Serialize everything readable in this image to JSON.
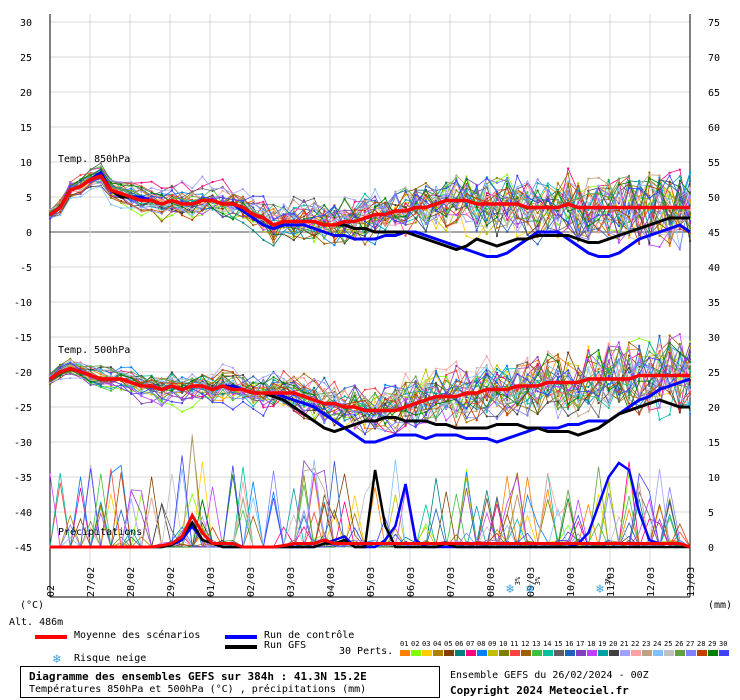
{
  "chart_data": {
    "type": "line",
    "title": "Diagramme des ensembles GEFS sur 384h : 41.3N 15.2E",
    "subtitle": "Températures 850hPa et 500hPa (°C) , précipitations (mm)",
    "x_dates": [
      "27/02",
      "28/02",
      "29/02",
      "01/03",
      "02/03",
      "03/03",
      "04/03",
      "05/03",
      "06/03",
      "07/03",
      "08/03",
      "09/03",
      "10/03",
      "11/03",
      "12/03",
      "13/03"
    ],
    "x_first_label": "02",
    "x_start_date": "26/02",
    "left_axis": {
      "label": "(°C)",
      "ticks": [
        30,
        25,
        20,
        15,
        10,
        5,
        0,
        -5,
        -10,
        -15,
        -20,
        -25,
        -30,
        -35,
        -40,
        -45
      ],
      "range": [
        -45,
        30
      ]
    },
    "right_axis": {
      "label": "(mm)",
      "ticks": [
        75,
        70,
        65,
        60,
        55,
        50,
        45,
        40,
        35,
        30,
        25,
        20,
        15,
        10,
        5,
        0
      ],
      "range": [
        0,
        75
      ]
    },
    "panel_labels": {
      "t850": "Temp. 850hPa",
      "t500": "Temp. 500hPa",
      "precip": "Précipitations"
    },
    "altitude": "Alt. 486m",
    "snow_risk_labels": [
      "3%",
      "3%",
      "3%"
    ],
    "series": [
      {
        "name": "Moyenne des scénarios",
        "color": "#ff0000",
        "t850": [
          2.5,
          3.5,
          6,
          6.5,
          7.5,
          8,
          6,
          5.5,
          5,
          4.5,
          4.5,
          4,
          4.5,
          4,
          4,
          4.5,
          4.5,
          4,
          4,
          3.5,
          2.5,
          2,
          1,
          1.5,
          1.5,
          1.5,
          1.5,
          1,
          1,
          1.5,
          1.5,
          2,
          2.5,
          2.5,
          3,
          3,
          3.5,
          3.5,
          4,
          4.5,
          4.5,
          4.5,
          4,
          4,
          4,
          4,
          4,
          3.5,
          3.5,
          3.5,
          3.5,
          4,
          3.5,
          3.5,
          3.5,
          3.5,
          3.5,
          3.5,
          3.5,
          3.5,
          3.5,
          3.5,
          3.5,
          3.5
        ],
        "t500": [
          -21,
          -20,
          -19.5,
          -20,
          -20.5,
          -21,
          -21,
          -21,
          -21.5,
          -22,
          -22,
          -22.5,
          -22,
          -22.5,
          -22,
          -22,
          -22.5,
          -22,
          -22.5,
          -22.5,
          -23,
          -23,
          -23,
          -23,
          -23,
          -23.5,
          -24,
          -24.5,
          -24.5,
          -25,
          -25,
          -25.5,
          -25.5,
          -25.5,
          -25.5,
          -25,
          -24.5,
          -24,
          -23.5,
          -23.5,
          -23.5,
          -23,
          -23,
          -22.5,
          -22.5,
          -22.5,
          -22,
          -22,
          -22,
          -21.5,
          -21.5,
          -21.5,
          -21.5,
          -21,
          -21,
          -21,
          -21,
          -21,
          -20.5,
          -20.5,
          -20.5,
          -20.5,
          -20.5,
          -20.5
        ],
        "precip": [
          0,
          0,
          0,
          0,
          0,
          0,
          0,
          0,
          0,
          0,
          0,
          0.2,
          0.5,
          1.5,
          4.5,
          2,
          0.5,
          0.5,
          0.5,
          0,
          0,
          0,
          0,
          0.2,
          0.5,
          0.5,
          0.5,
          1,
          0.5,
          0.5,
          0.5,
          0.5,
          0.5,
          0.5,
          0.5,
          0.5,
          0.5,
          0.5,
          0.5,
          0.5,
          0.5,
          0.5,
          0.5,
          0.5,
          0.5,
          0.5,
          0.5,
          0.5,
          0.5,
          0.5,
          0.5,
          0.5,
          0.5,
          0.5,
          0.5,
          0.5,
          0.5,
          0.5,
          0.5,
          0.5,
          0.5,
          0.5,
          0.5,
          0
        ]
      },
      {
        "name": "Run de contrôle",
        "color": "#0000ff",
        "t850": [
          2.5,
          3.5,
          6,
          6.5,
          7.5,
          8.5,
          6,
          5,
          5,
          5,
          4.5,
          4,
          4.5,
          4,
          4,
          4.5,
          4.5,
          4,
          4,
          3,
          2,
          1,
          0.5,
          1,
          1,
          1,
          0.5,
          0,
          -0.5,
          -0.5,
          -1,
          -1,
          -1,
          -0.5,
          -0.5,
          0,
          0,
          -0.5,
          -1,
          -1.5,
          -2,
          -2.5,
          -3,
          -3.5,
          -3.5,
          -3,
          -2,
          -1,
          0,
          0,
          0,
          -1,
          -2,
          -3,
          -3.5,
          -3.5,
          -3,
          -2,
          -1,
          -0.5,
          0,
          0.5,
          1,
          0
        ],
        "t500": [
          -21,
          -20,
          -19.5,
          -20,
          -20.5,
          -21,
          -21,
          -21,
          -21.5,
          -22,
          -22,
          -22.5,
          -22,
          -22.5,
          -22,
          -22,
          -22.5,
          -22,
          -22,
          -22.5,
          -23,
          -23,
          -23,
          -23.5,
          -24,
          -24.5,
          -25,
          -26,
          -27,
          -28,
          -29,
          -30,
          -30,
          -29.5,
          -29,
          -29,
          -29,
          -29.5,
          -29,
          -29,
          -29,
          -29.5,
          -29.5,
          -29.5,
          -30,
          -29.5,
          -29,
          -28.5,
          -28,
          -28,
          -28,
          -27.5,
          -27.5,
          -27,
          -27,
          -27,
          -26,
          -25,
          -24,
          -23.5,
          -22.5,
          -22,
          -21.5,
          -21
        ],
        "precip": [
          0,
          0,
          0,
          0,
          0,
          0,
          0,
          0,
          0,
          0,
          0,
          0,
          0.3,
          1,
          3,
          1,
          0.5,
          0,
          0,
          0,
          0,
          0,
          0,
          0,
          0,
          0,
          0,
          0.5,
          1,
          1.5,
          0,
          0,
          0,
          1,
          3,
          9,
          1,
          0,
          0,
          0,
          0,
          0,
          0,
          0,
          0,
          0,
          0,
          0,
          0,
          0,
          0,
          0,
          0.5,
          2,
          6,
          10,
          12,
          11,
          5,
          1,
          0.5,
          0.5,
          0.5,
          0
        ]
      },
      {
        "name": "Run GFS",
        "color": "#000000",
        "t850": [
          2.5,
          3.5,
          6,
          6.5,
          7.5,
          8,
          6,
          5,
          5,
          4.5,
          4.5,
          4,
          4.5,
          4,
          4,
          4.5,
          4.5,
          4,
          4,
          3.5,
          2.5,
          2,
          1,
          1.5,
          1.5,
          1.5,
          1.5,
          1,
          1,
          1,
          0.5,
          0.5,
          0,
          0,
          0,
          0,
          -0.5,
          -1,
          -1.5,
          -2,
          -2.5,
          -2,
          -1,
          -1.5,
          -2,
          -1.5,
          -1,
          -1,
          -0.5,
          -0.5,
          -0.5,
          -0.5,
          -1,
          -1.5,
          -1.5,
          -1,
          -0.5,
          0,
          0.5,
          1,
          1.5,
          2,
          2,
          2
        ],
        "t500": [
          -21,
          -20,
          -19.5,
          -20,
          -20.5,
          -21,
          -21,
          -21,
          -21.5,
          -22,
          -22,
          -22.5,
          -22,
          -22.5,
          -22,
          -22,
          -22.5,
          -22,
          -22.5,
          -22.5,
          -23,
          -23,
          -23.5,
          -24,
          -25,
          -26,
          -27,
          -28,
          -28.5,
          -28,
          -27.5,
          -27,
          -27,
          -26.5,
          -26.5,
          -27,
          -27,
          -27,
          -27.5,
          -27.5,
          -28,
          -28,
          -28,
          -28,
          -27.5,
          -27.5,
          -27.5,
          -28,
          -28,
          -28.5,
          -28.5,
          -28.5,
          -29,
          -28.5,
          -28,
          -27,
          -26,
          -25.5,
          -25,
          -24.5,
          -24,
          -24.5,
          -25,
          -25
        ],
        "precip": [
          0,
          0,
          0,
          0,
          0,
          0,
          0,
          0,
          0,
          0,
          0,
          0,
          0.3,
          1.5,
          3.5,
          1,
          0.5,
          0,
          0,
          0,
          0,
          0,
          0,
          0,
          0,
          0,
          0,
          0.5,
          0.5,
          1,
          0,
          0,
          11,
          3,
          0,
          0,
          0,
          0,
          0,
          0.5,
          0,
          0,
          0,
          0,
          0,
          0,
          0,
          0,
          0,
          0,
          0,
          0,
          0,
          0,
          0,
          0,
          0,
          0,
          0,
          0,
          0,
          0,
          0,
          0
        ]
      }
    ],
    "ensemble_members": 30
  },
  "legend": {
    "mean": "Moyenne des scénarios",
    "control": "Run de contrôle",
    "gfs": "Run GFS",
    "snow": "Risque neige",
    "perts": "30 Perts.",
    "perts_numbers": [
      "01",
      "02",
      "03",
      "04",
      "05",
      "06",
      "07",
      "08",
      "09",
      "10",
      "11",
      "12",
      "13",
      "14",
      "15",
      "16",
      "17",
      "18",
      "19",
      "20",
      "21",
      "22",
      "23",
      "24",
      "25",
      "26",
      "27",
      "28",
      "29",
      "30"
    ],
    "perts_colors": [
      "#ff8000",
      "#80ff00",
      "#ffcc00",
      "#b08000",
      "#804000",
      "#008080",
      "#ff0080",
      "#0080ff",
      "#c0c000",
      "#808000",
      "#ff4040",
      "#a06000",
      "#40c040",
      "#00c0a0",
      "#606060",
      "#2060c0",
      "#8040c0",
      "#c040ff",
      "#00a0a0",
      "#404040",
      "#a0a0ff",
      "#ffa0a0",
      "#c0a080",
      "#80c0ff",
      "#c0c0c0",
      "#60a040",
      "#8080ff",
      "#c04000",
      "#008000",
      "#4040ff"
    ]
  },
  "footer": {
    "title": "Diagramme des ensembles GEFS sur 384h : 41.3N 15.2E",
    "subtitle": "Températures 850hPa et 500hPa (°C) , précipitations (mm)",
    "run": "Ensemble GEFS du 26/02/2024 - 00Z",
    "copyright": "Copyright 2024 Meteociel.fr"
  }
}
